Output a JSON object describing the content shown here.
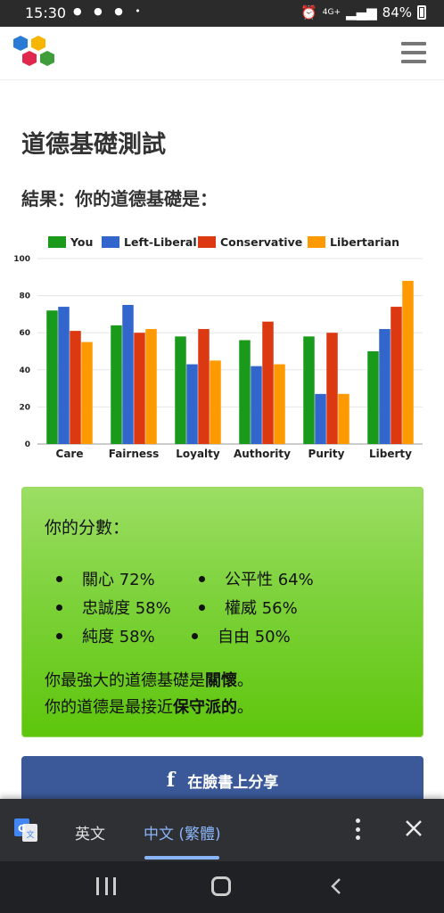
{
  "status_bar": {
    "time": "15:30",
    "notif_icons": [
      "line-icon",
      "messenger-icon",
      "twitch-icon",
      "dot"
    ],
    "network": "4G+",
    "battery": "84%"
  },
  "header": {
    "logo": "hexagon-logo-icon",
    "menu": "hamburger-menu-icon"
  },
  "page": {
    "title": "道德基礎測試",
    "result_title": "結果：你的道德基礎是："
  },
  "chart_data": {
    "type": "bar",
    "categories": [
      "Care",
      "Fairness",
      "Loyalty",
      "Authority",
      "Purity",
      "Liberty"
    ],
    "series": [
      {
        "name": "You",
        "color": "#1a9a1a",
        "values": [
          72,
          64,
          58,
          56,
          58,
          50
        ]
      },
      {
        "name": "Left-Liberal",
        "color": "#3366cc",
        "values": [
          74,
          75,
          43,
          42,
          27,
          62
        ]
      },
      {
        "name": "Conservative",
        "color": "#dc3912",
        "values": [
          61,
          60,
          62,
          66,
          60,
          74
        ]
      },
      {
        "name": "Libertarian",
        "color": "#ff9900",
        "values": [
          55,
          62,
          45,
          43,
          27,
          88
        ]
      }
    ],
    "ylim": [
      0,
      100
    ],
    "yticks": [
      "0",
      "20",
      "40",
      "60",
      "80",
      "100"
    ],
    "grid": true,
    "legend": "top"
  },
  "scores": {
    "label": "你的分數：",
    "rows": [
      [
        "關心 72%",
        "公平性 64%"
      ],
      [
        "忠誠度 58%",
        "權威 56%"
      ],
      [
        "純度 58%",
        "自由 50%"
      ]
    ],
    "summary_line1_prefix": "你最強大的道德基礎是",
    "summary_line1_bold": "關懷",
    "summary_line1_suffix": "。",
    "summary_line2_prefix": "你的道德是最接近",
    "summary_line2_bold": "保守派的",
    "summary_line2_suffix": "。"
  },
  "share": {
    "icon": "facebook-icon",
    "label": "在臉書上分享"
  },
  "translate_bar": {
    "icon": "google-translate-icon",
    "lang_source": "英文",
    "lang_target": "中文 (繁體)"
  },
  "colors": {
    "score_box_top": "#9bde64",
    "score_box_bottom": "#5ec60c",
    "facebook_blue": "#3b5998",
    "translate_accent": "#8ab4f8"
  }
}
